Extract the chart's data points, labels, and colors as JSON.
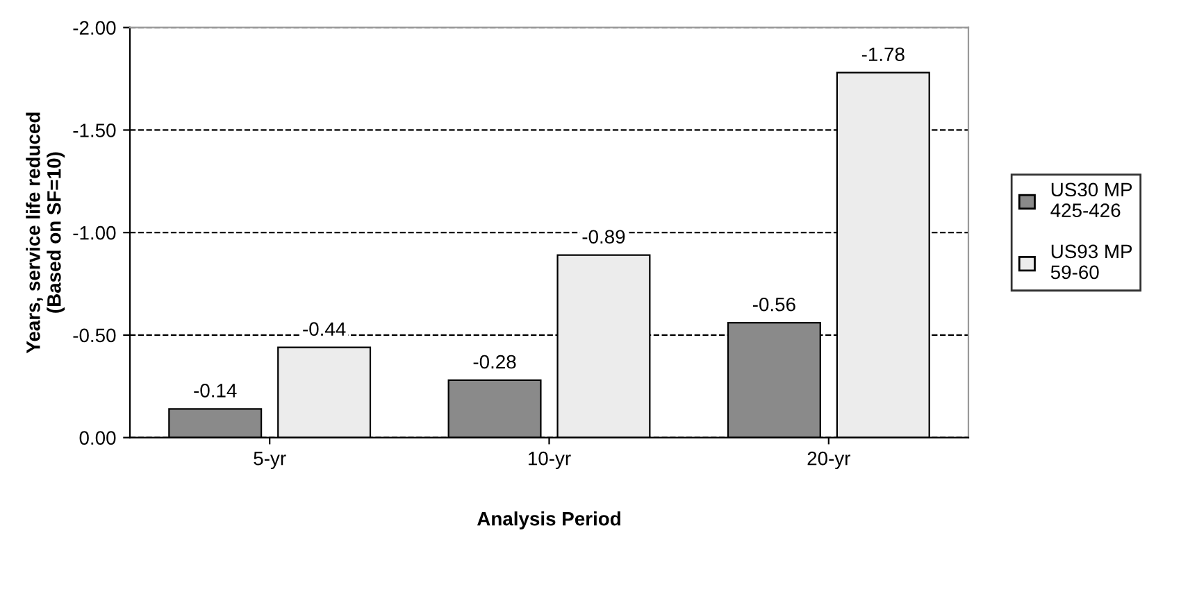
{
  "chart_data": {
    "type": "bar",
    "categories": [
      "5-yr",
      "10-yr",
      "20-yr"
    ],
    "series": [
      {
        "name": "US30 MP\n425-426",
        "color": "#8a8a8a",
        "values": [
          -0.14,
          -0.28,
          -0.56
        ]
      },
      {
        "name": "US93 MP\n59-60",
        "color": "#ececec",
        "values": [
          -0.44,
          -0.89,
          -1.78
        ]
      }
    ],
    "xlabel": "Analysis Period",
    "ylabel": "Years, service life reduced\n(Based on SF=10)",
    "ylim": [
      0,
      -2
    ],
    "yticks": [
      {
        "value": 0,
        "label": "0.00"
      },
      {
        "value": -0.5,
        "label": "-0.50"
      },
      {
        "value": -1,
        "label": "-1.00"
      },
      {
        "value": -1.5,
        "label": "-1.50"
      },
      {
        "value": -2,
        "label": "-2.00"
      }
    ],
    "grid": "y",
    "legend": "right",
    "data_labels": true
  }
}
